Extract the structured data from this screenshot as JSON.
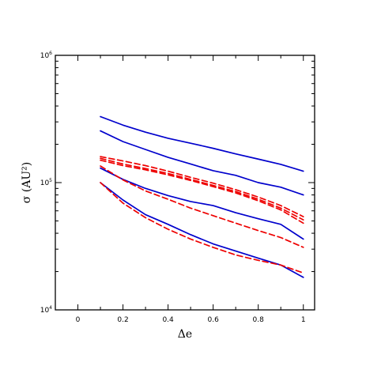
{
  "chart_data": {
    "type": "line",
    "xlabel": "Δe",
    "ylabel": "σ (AU²)",
    "xlim": [
      -0.1,
      1.05
    ],
    "ylim": [
      10000,
      1000000
    ],
    "y_scale": "log",
    "grid": false,
    "legend": "none",
    "x_ticks": [
      "0",
      "0.2",
      "0.4",
      "0.6",
      "0.8",
      "1"
    ],
    "y_ticks": [
      {
        "base": "10",
        "exp": "4"
      },
      {
        "base": "10",
        "exp": "5"
      },
      {
        "base": "10",
        "exp": "6"
      }
    ],
    "colors": {
      "solid": "#0000cc",
      "dashed": "#ee0000"
    },
    "x": [
      0.1,
      0.2,
      0.3,
      0.4,
      0.5,
      0.6,
      0.7,
      0.8,
      0.9,
      1.0
    ],
    "series": [
      {
        "style": "solid",
        "color": "#0000cc",
        "values": [
          330000,
          283000,
          249000,
          223000,
          204000,
          186000,
          168000,
          153000,
          139000,
          123000
        ]
      },
      {
        "style": "solid",
        "color": "#0000cc",
        "values": [
          255000,
          210000,
          182000,
          158000,
          140000,
          124000,
          114000,
          100000,
          92000,
          80000
        ]
      },
      {
        "style": "solid",
        "color": "#0000cc",
        "values": [
          130000,
          106000,
          90000,
          79000,
          71000,
          66000,
          58000,
          52000,
          47000,
          36000
        ]
      },
      {
        "style": "solid",
        "color": "#0000cc",
        "values": [
          100000,
          73000,
          56000,
          47000,
          39000,
          33000,
          29000,
          25500,
          22500,
          18000
        ]
      },
      {
        "style": "dashed",
        "color": "#ee0000",
        "values": [
          160000,
          148000,
          136000,
          123000,
          110000,
          99000,
          88000,
          77000,
          66000,
          54000
        ]
      },
      {
        "style": "dashed",
        "color": "#ee0000",
        "values": [
          155000,
          140000,
          129000,
          118000,
          106000,
          95000,
          85000,
          74000,
          63000,
          51000
        ]
      },
      {
        "style": "dashed",
        "color": "#ee0000",
        "values": [
          150000,
          136000,
          126000,
          115000,
          104000,
          93000,
          83000,
          72000,
          61000,
          48000
        ]
      },
      {
        "style": "dashed",
        "color": "#ee0000",
        "values": [
          135000,
          105000,
          86000,
          74000,
          63000,
          55000,
          48000,
          42000,
          37000,
          31000
        ]
      },
      {
        "style": "dashed",
        "color": "#ee0000",
        "values": [
          100000,
          69000,
          53000,
          43000,
          36000,
          31000,
          27000,
          24500,
          22500,
          19500
        ]
      }
    ]
  }
}
